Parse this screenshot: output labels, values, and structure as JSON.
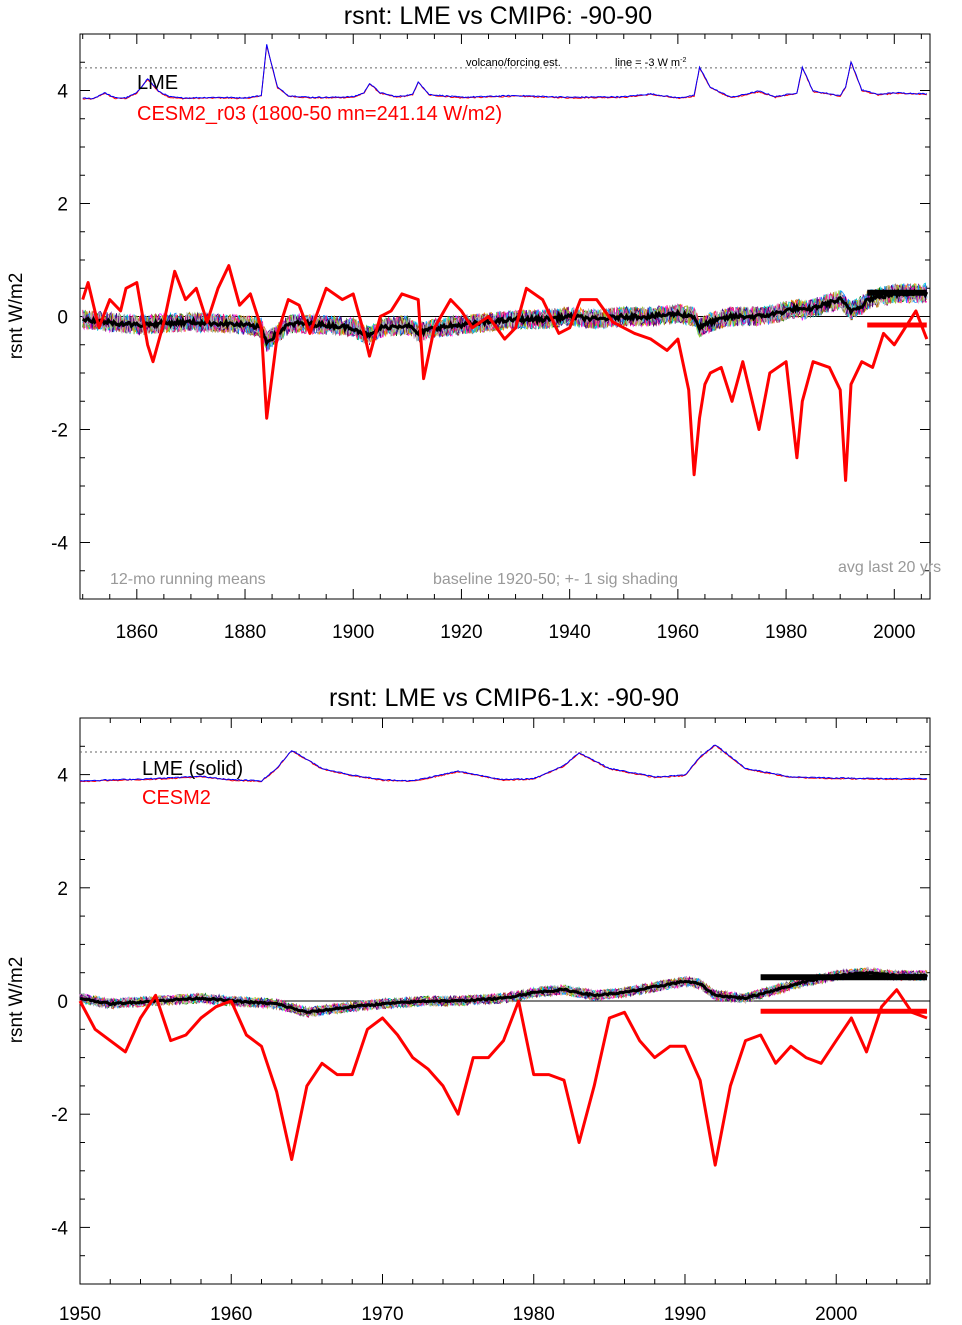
{
  "chart_data": [
    {
      "type": "line",
      "title": "rsnt: LME vs CMIP6: -90-90",
      "ylabel": "rsnt W/m2",
      "xlim": [
        1850,
        2006
      ],
      "ylim": [
        -5,
        5
      ],
      "xticks": [
        1860,
        1880,
        1900,
        1920,
        1940,
        1960,
        1980,
        2000
      ],
      "yticks": [
        -4,
        -2,
        0,
        2,
        4
      ],
      "legend": {
        "placement": "top-left",
        "entries": [
          {
            "label": "LME",
            "color": "#000000"
          },
          {
            "label": "CESM2_r03 (1800-50 mn=241.14 W/m2)",
            "color": "#ff0000"
          }
        ]
      },
      "notes": {
        "left": "12-mo running means",
        "center": "baseline 1920-50; +- 1 sig shading",
        "right": "avg last 20 yrs",
        "forcing_label": "volcano/forcing est.",
        "line_label": "line = -3 W m",
        "line_label_sup": "-2"
      },
      "forcing_ref_y": 4.4,
      "forcing_series": {
        "x": [
          1850,
          1852,
          1854,
          1856,
          1858,
          1860,
          1862,
          1864,
          1866,
          1868,
          1870,
          1875,
          1880,
          1883,
          1884,
          1886,
          1888,
          1892,
          1896,
          1900,
          1902,
          1903,
          1905,
          1908,
          1911,
          1912,
          1914,
          1920,
          1930,
          1940,
          1950,
          1955,
          1960,
          1963,
          1964,
          1966,
          1968,
          1970,
          1975,
          1978,
          1982,
          1983,
          1985,
          1990,
          1991,
          1992,
          1994,
          1997,
          2000,
          2006
        ],
        "values": [
          3.85,
          3.85,
          3.95,
          3.86,
          3.86,
          3.95,
          4.2,
          3.98,
          3.88,
          3.86,
          3.86,
          3.87,
          3.86,
          3.9,
          4.8,
          4.05,
          3.9,
          3.87,
          3.87,
          3.88,
          3.95,
          4.12,
          3.95,
          3.88,
          3.92,
          4.15,
          3.92,
          3.87,
          3.9,
          3.87,
          3.88,
          3.93,
          3.86,
          3.9,
          4.4,
          4.05,
          3.95,
          3.87,
          3.98,
          3.88,
          3.95,
          4.4,
          3.98,
          3.9,
          4.05,
          4.5,
          4.0,
          3.92,
          3.95,
          3.93
        ]
      },
      "ensemble_mean": {
        "x": [
          1850,
          1855,
          1860,
          1865,
          1870,
          1875,
          1880,
          1883,
          1884,
          1886,
          1888,
          1890,
          1895,
          1900,
          1902,
          1903,
          1905,
          1910,
          1912,
          1915,
          1920,
          1925,
          1930,
          1935,
          1940,
          1945,
          1950,
          1955,
          1960,
          1963,
          1964,
          1966,
          1968,
          1970,
          1975,
          1978,
          1980,
          1982,
          1983,
          1985,
          1990,
          1991,
          1992,
          1994,
          1995,
          2000,
          2006
        ],
        "values": [
          -0.05,
          -0.1,
          -0.15,
          -0.12,
          -0.1,
          -0.12,
          -0.15,
          -0.2,
          -0.45,
          -0.3,
          -0.15,
          -0.12,
          -0.15,
          -0.2,
          -0.3,
          -0.35,
          -0.2,
          -0.15,
          -0.3,
          -0.2,
          -0.15,
          -0.1,
          -0.05,
          -0.05,
          0.0,
          -0.05,
          0.0,
          0.0,
          0.05,
          0.0,
          -0.2,
          -0.1,
          -0.05,
          0.0,
          0.0,
          0.05,
          0.1,
          0.15,
          0.1,
          0.15,
          0.3,
          0.2,
          0.1,
          0.2,
          0.3,
          0.4,
          0.42
        ]
      },
      "cesm2_series": {
        "x": [
          1850,
          1851,
          1852,
          1853,
          1855,
          1857,
          1858,
          1860,
          1862,
          1863,
          1865,
          1867,
          1869,
          1871,
          1873,
          1875,
          1877,
          1879,
          1881,
          1883,
          1884,
          1886,
          1888,
          1890,
          1892,
          1895,
          1898,
          1900,
          1902,
          1903,
          1905,
          1907,
          1909,
          1912,
          1913,
          1915,
          1918,
          1920,
          1922,
          1925,
          1928,
          1930,
          1932,
          1935,
          1938,
          1940,
          1942,
          1945,
          1948,
          1950,
          1952,
          1955,
          1958,
          1960,
          1962,
          1963,
          1964,
          1965,
          1966,
          1968,
          1970,
          1972,
          1975,
          1977,
          1980,
          1982,
          1983,
          1985,
          1988,
          1990,
          1991,
          1992,
          1994,
          1996,
          1998,
          2000,
          2002,
          2004,
          2006
        ],
        "values": [
          0.3,
          0.6,
          0.2,
          -0.2,
          0.3,
          0.1,
          0.5,
          0.6,
          -0.5,
          -0.8,
          -0.1,
          0.8,
          0.3,
          0.5,
          -0.1,
          0.5,
          0.9,
          0.2,
          0.4,
          -0.2,
          -1.8,
          -0.3,
          0.3,
          0.2,
          -0.3,
          0.5,
          0.3,
          0.4,
          -0.3,
          -0.7,
          0.0,
          0.1,
          0.4,
          0.3,
          -1.1,
          -0.2,
          0.3,
          0.1,
          -0.2,
          0.0,
          -0.4,
          -0.2,
          0.5,
          0.3,
          -0.3,
          -0.2,
          0.3,
          0.3,
          -0.1,
          -0.2,
          -0.3,
          -0.4,
          -0.6,
          -0.4,
          -1.3,
          -2.8,
          -1.8,
          -1.2,
          -1.0,
          -0.9,
          -1.5,
          -0.8,
          -2.0,
          -1.0,
          -0.8,
          -2.5,
          -1.5,
          -0.8,
          -0.9,
          -1.3,
          -2.9,
          -1.2,
          -0.8,
          -0.9,
          -0.3,
          -0.5,
          -0.2,
          0.1,
          -0.4
        ]
      },
      "avg_last_20yrs": {
        "x_start": 1995,
        "x_end": 2006,
        "ensemble": 0.42,
        "cesm2": -0.15
      }
    },
    {
      "type": "line",
      "title": "rsnt: LME vs CMIP6-1.x: -90-90",
      "ylabel": "rsnt W/m2",
      "xlim": [
        1950,
        2006
      ],
      "ylim": [
        -5,
        5
      ],
      "xticks": [
        1950,
        1960,
        1970,
        1980,
        1990,
        2000
      ],
      "yticks": [
        -4,
        -2,
        0,
        2,
        4
      ],
      "legend": {
        "placement": "top-left",
        "entries": [
          {
            "label": "LME (solid)",
            "color": "#000000"
          },
          {
            "label": "CESM2",
            "color": "#ff0000"
          }
        ]
      },
      "forcing_ref_y": 4.4,
      "forcing_series": {
        "x": [
          1950,
          1955,
          1958,
          1960,
          1962,
          1963,
          1964,
          1966,
          1968,
          1970,
          1972,
          1975,
          1978,
          1980,
          1982,
          1983,
          1985,
          1988,
          1990,
          1991,
          1992,
          1994,
          1997,
          2000,
          2003,
          2006
        ],
        "values": [
          3.88,
          3.92,
          3.96,
          3.9,
          3.88,
          4.1,
          4.42,
          4.1,
          3.98,
          3.9,
          3.88,
          4.05,
          3.9,
          3.92,
          4.15,
          4.38,
          4.1,
          3.95,
          3.98,
          4.3,
          4.52,
          4.1,
          3.95,
          3.93,
          3.92,
          3.92
        ]
      },
      "ensemble_mean": {
        "x": [
          1950,
          1952,
          1955,
          1958,
          1960,
          1963,
          1965,
          1968,
          1970,
          1973,
          1975,
          1978,
          1980,
          1982,
          1984,
          1986,
          1988,
          1990,
          1991,
          1992,
          1994,
          1996,
          1998,
          2000,
          2002,
          2004,
          2006
        ],
        "values": [
          0.05,
          -0.05,
          0.0,
          0.05,
          0.0,
          -0.05,
          -0.2,
          -0.1,
          -0.05,
          0.0,
          0.0,
          0.05,
          0.15,
          0.2,
          0.1,
          0.15,
          0.25,
          0.35,
          0.3,
          0.1,
          0.05,
          0.2,
          0.35,
          0.45,
          0.5,
          0.45,
          0.45
        ]
      },
      "cesm2_series": {
        "x": [
          1950,
          1951,
          1953,
          1954,
          1955,
          1956,
          1957,
          1958,
          1959,
          1960,
          1961,
          1962,
          1963,
          1964,
          1965,
          1966,
          1967,
          1968,
          1969,
          1970,
          1971,
          1972,
          1973,
          1974,
          1975,
          1976,
          1977,
          1978,
          1979,
          1980,
          1981,
          1982,
          1983,
          1984,
          1985,
          1986,
          1987,
          1988,
          1989,
          1990,
          1991,
          1992,
          1993,
          1994,
          1995,
          1996,
          1997,
          1998,
          1999,
          2000,
          2001,
          2002,
          2003,
          2004,
          2005,
          2006
        ],
        "values": [
          0.0,
          -0.5,
          -0.9,
          -0.3,
          0.1,
          -0.7,
          -0.6,
          -0.3,
          -0.1,
          0.0,
          -0.6,
          -0.8,
          -1.6,
          -2.8,
          -1.5,
          -1.1,
          -1.3,
          -1.3,
          -0.5,
          -0.3,
          -0.6,
          -1.0,
          -1.2,
          -1.5,
          -2.0,
          -1.0,
          -1.0,
          -0.7,
          0.0,
          -1.3,
          -1.3,
          -1.4,
          -2.5,
          -1.5,
          -0.3,
          -0.2,
          -0.7,
          -1.0,
          -0.8,
          -0.8,
          -1.4,
          -2.9,
          -1.5,
          -0.7,
          -0.6,
          -1.1,
          -0.8,
          -1.0,
          -1.1,
          -0.7,
          -0.3,
          -0.9,
          -0.1,
          0.2,
          -0.2,
          -0.3
        ]
      },
      "avg_last_20yrs": {
        "x_start": 1995,
        "x_end": 2006,
        "ensemble": 0.42,
        "cesm2": -0.18
      }
    }
  ]
}
